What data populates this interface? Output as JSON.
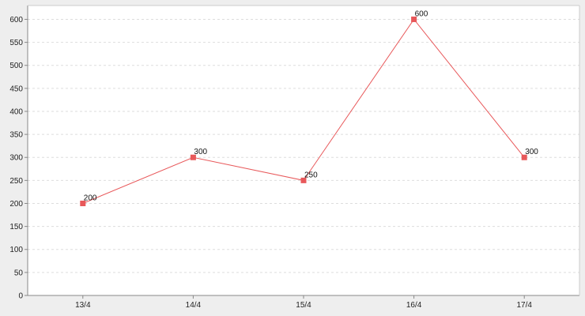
{
  "chart_data": {
    "type": "line",
    "categories": [
      "13/4",
      "14/4",
      "15/4",
      "16/4",
      "17/4"
    ],
    "series": [
      {
        "values": [
          200,
          300,
          250,
          600,
          300
        ],
        "color": "#e8585a"
      }
    ],
    "data_labels": [
      "200",
      "300",
      "250",
      "600",
      "300"
    ],
    "ylim": [
      0,
      630
    ],
    "yticks": [
      0,
      50,
      100,
      150,
      200,
      250,
      300,
      350,
      400,
      450,
      500,
      550,
      600
    ],
    "grid": true,
    "grid_style": "dashed-horizontal",
    "legend": "none",
    "colors": {
      "plot_bg": "#ffffff",
      "page_bg": "#eeeeee",
      "grid": "#dddddd",
      "axis": "#888888"
    }
  }
}
